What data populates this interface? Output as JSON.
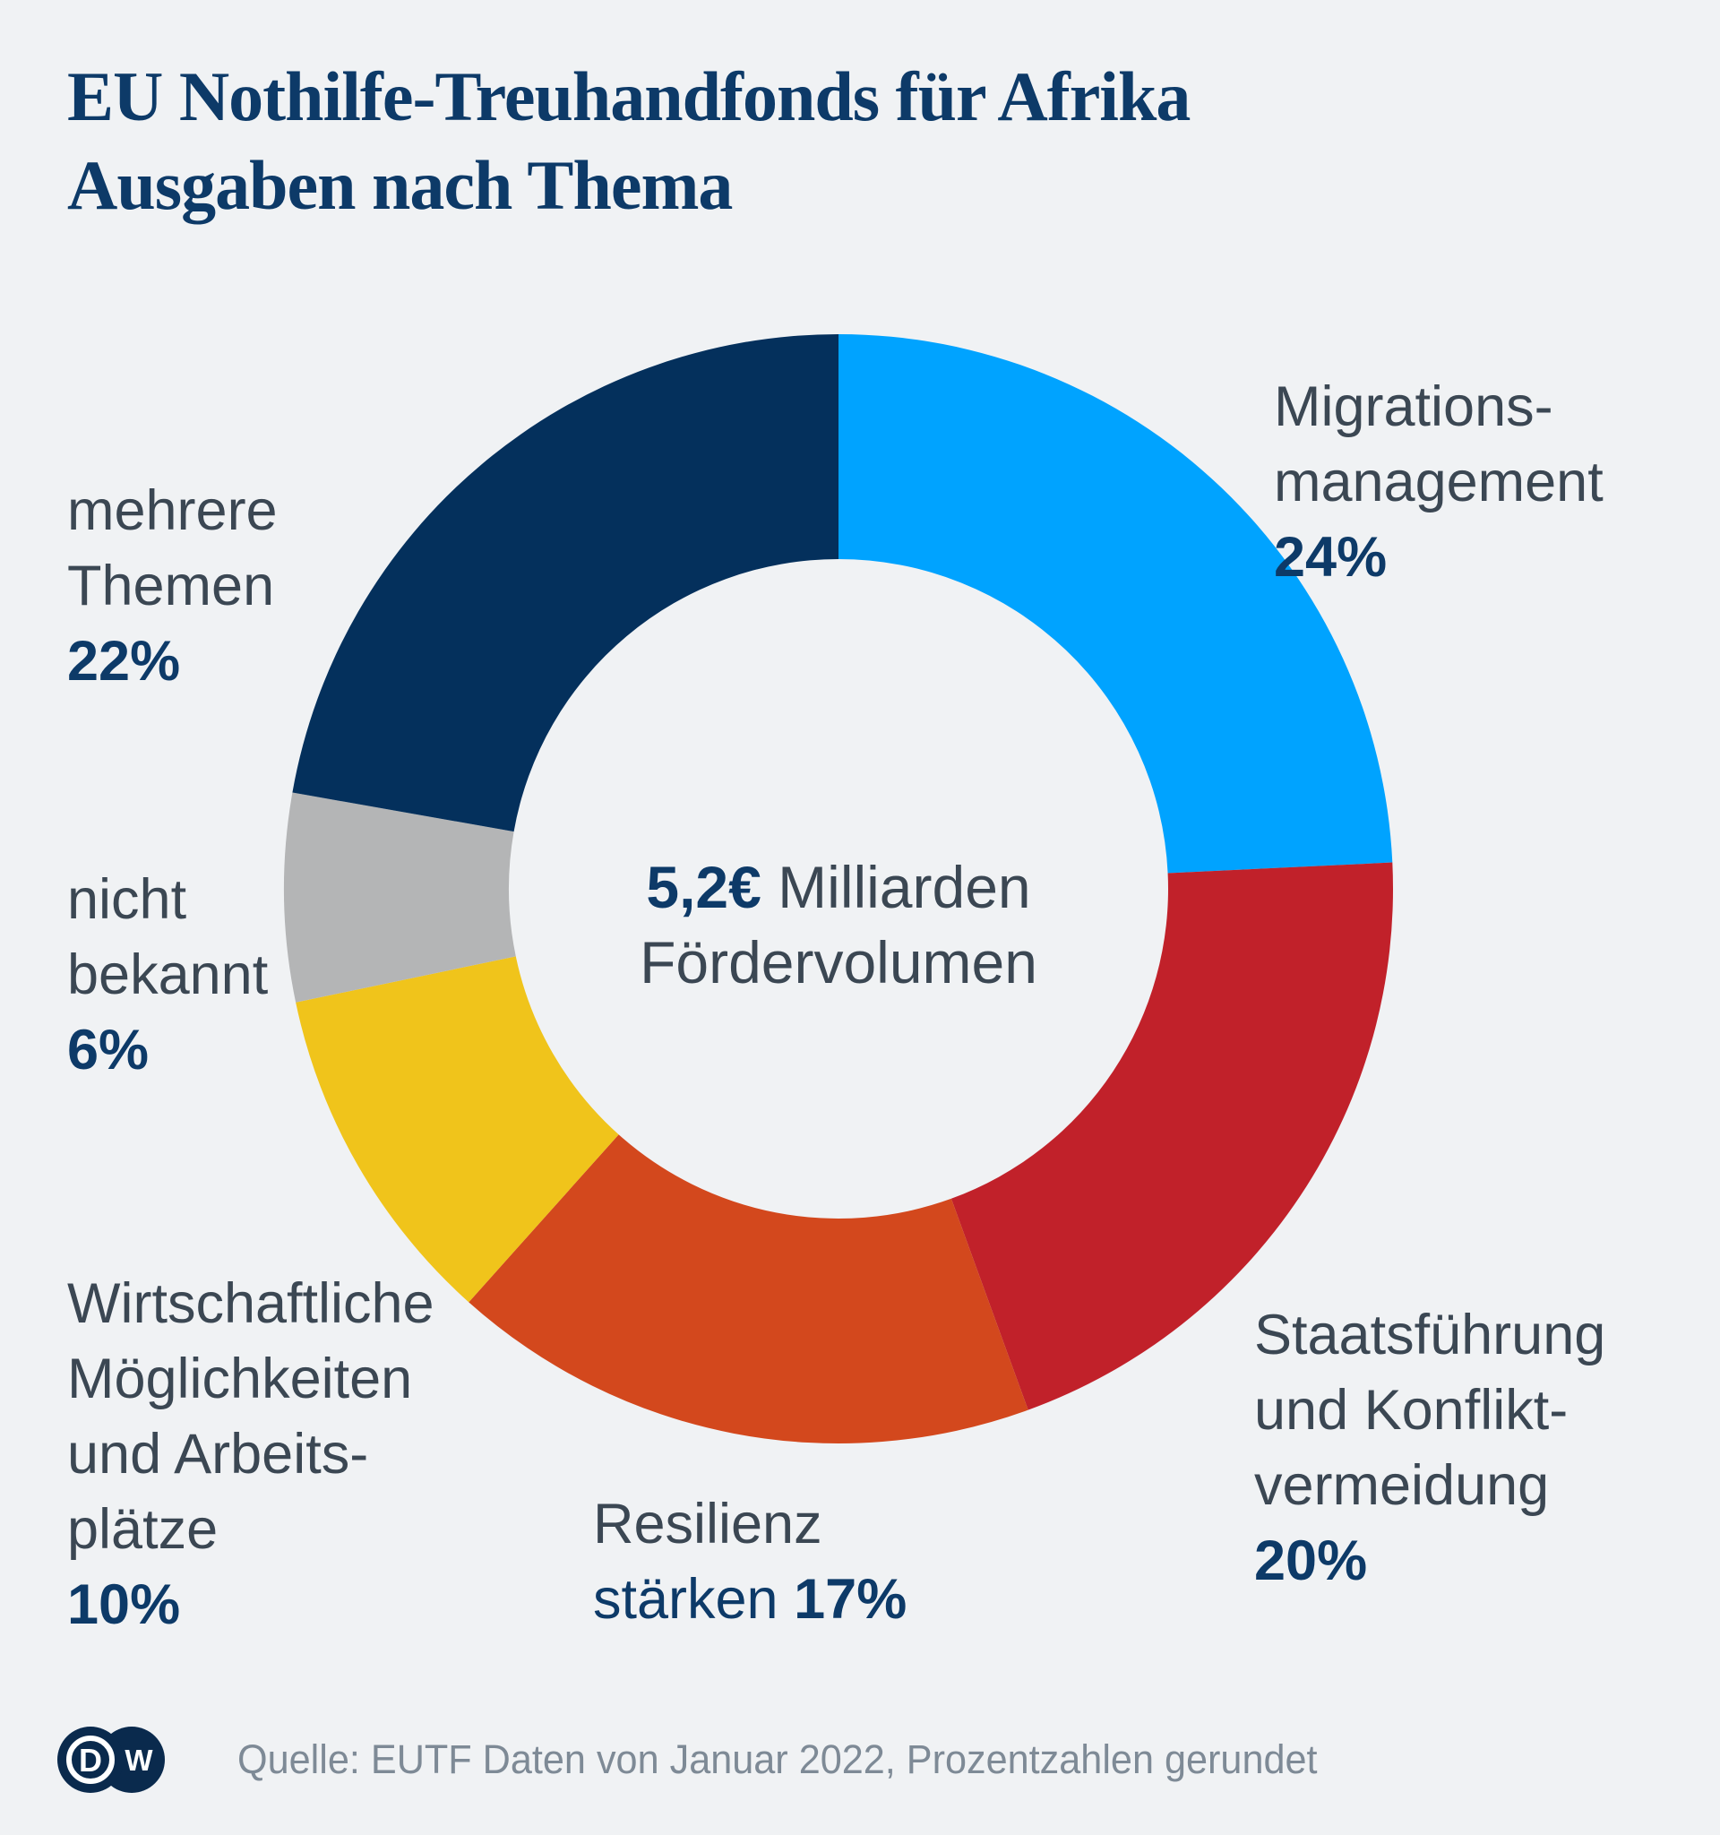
{
  "title": {
    "line1": "EU Nothilfe-Treuhandfonds für Afrika",
    "line2": "Ausgaben nach Thema"
  },
  "center_label": {
    "value": "5,2€",
    "rest": " Milliarden",
    "line2": "Fördervolumen"
  },
  "callouts": {
    "migration": {
      "lines": [
        "Migrations-",
        "management"
      ],
      "pct": "24%"
    },
    "staats": {
      "lines": [
        "Staatsführung",
        "und Konflikt-",
        "vermeidung"
      ],
      "pct": "20%"
    },
    "resilienz": {
      "line1": "Resilienz",
      "line2_plain": "stärken",
      "pct": "17%"
    },
    "wirtschaft": {
      "lines": [
        "Wirtschaftliche",
        "Möglichkeiten",
        "und Arbeits-",
        "plätze"
      ],
      "pct": "10%"
    },
    "nicht": {
      "lines": [
        "nicht",
        "bekannt"
      ],
      "pct": "6%"
    },
    "mehrere": {
      "lines": [
        "mehrere",
        "Themen"
      ],
      "pct": "22%"
    }
  },
  "source": {
    "text": "Quelle: EUTF Daten von Januar 2022, Prozentzahlen gerundet"
  },
  "logo": {
    "name": "DW",
    "letters": [
      "D",
      "W"
    ]
  },
  "colors": {
    "bg": "#f0f2f4",
    "navy-text": "#0d3a68",
    "label-gray": "#3b4753",
    "source-gray": "#7e8a96",
    "logo-navy": "#0a2a4d"
  },
  "chart_data": {
    "type": "pie",
    "subtype": "donut",
    "title": "EU Nothilfe-Treuhandfonds für Afrika – Ausgaben nach Thema",
    "center_text": "5,2€ Milliarden Fördervolumen",
    "start_angle_deg": 0,
    "direction": "clockwise-from-top",
    "legend_position": "labels-around-donut",
    "slices": [
      {
        "label": "Migrationsmanagement",
        "value_pct": 24,
        "color": "#00a3ff"
      },
      {
        "label": "Staatsführung und Konfliktvermeidung",
        "value_pct": 20,
        "color": "#c1212a"
      },
      {
        "label": "Resilienz stärken",
        "value_pct": 17,
        "color": "#d3481d"
      },
      {
        "label": "Wirtschaftliche Möglichkeiten und Arbeitsplätze",
        "value_pct": 10,
        "color": "#f0c41b"
      },
      {
        "label": "nicht bekannt",
        "value_pct": 6,
        "color": "#b4b5b6"
      },
      {
        "label": "mehrere Themen",
        "value_pct": 22,
        "color": "#04305c"
      }
    ]
  }
}
